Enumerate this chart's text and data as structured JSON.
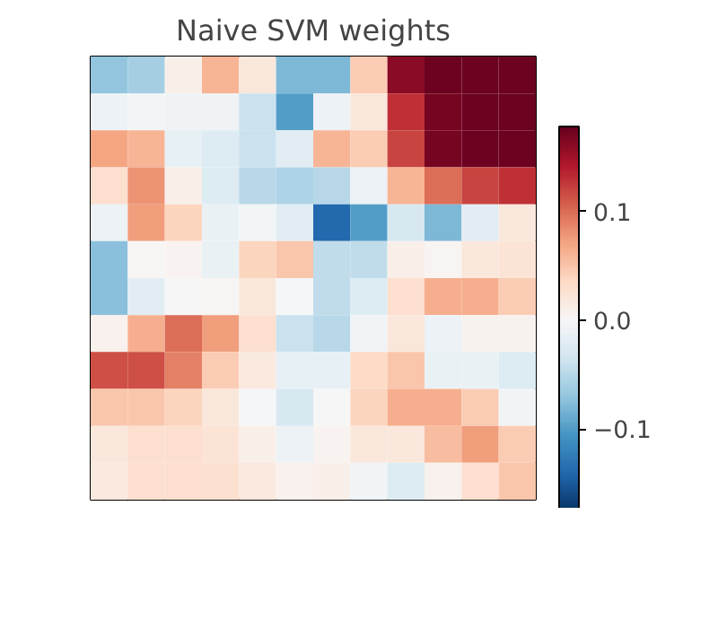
{
  "chart_data": {
    "type": "heatmap",
    "title": "Naive SVM weights",
    "tick_labels": false,
    "categories": [
      null,
      null,
      null,
      null,
      null,
      null,
      null,
      null,
      null,
      null,
      null,
      null
    ],
    "y_categories": [
      null,
      null,
      null,
      null,
      null,
      null,
      null,
      null,
      null,
      null,
      null,
      null
    ],
    "cells": [
      [
        -0.07,
        -0.06,
        0.01,
        0.06,
        0.02,
        -0.08,
        -0.08,
        0.045,
        0.16,
        0.175,
        0.175,
        0.175
      ],
      [
        -0.01,
        -0.005,
        -0.007,
        -0.007,
        -0.04,
        -0.1,
        -0.01,
        0.02,
        0.13,
        0.17,
        0.175,
        0.175
      ],
      [
        0.07,
        0.06,
        -0.015,
        -0.025,
        -0.04,
        -0.02,
        0.06,
        0.045,
        0.12,
        0.17,
        0.175,
        0.175
      ],
      [
        0.03,
        0.08,
        0.01,
        -0.025,
        -0.05,
        -0.055,
        -0.05,
        -0.01,
        0.06,
        0.1,
        0.12,
        0.13
      ],
      [
        -0.01,
        0.075,
        0.04,
        -0.012,
        -0.005,
        -0.02,
        -0.14,
        -0.1,
        -0.03,
        -0.08,
        -0.02,
        0.02
      ],
      [
        -0.075,
        0.002,
        0.005,
        -0.012,
        0.04,
        0.05,
        -0.045,
        -0.045,
        0.01,
        0.004,
        0.02,
        0.025
      ],
      [
        -0.075,
        -0.02,
        0,
        0.002,
        0.02,
        -0.002,
        -0.045,
        -0.025,
        0.03,
        0.065,
        0.065,
        0.045
      ],
      [
        0.008,
        0.065,
        0.1,
        0.075,
        0.03,
        -0.04,
        -0.05,
        -0.006,
        0.02,
        -0.01,
        0.006,
        0.006
      ],
      [
        0.115,
        0.115,
        0.09,
        0.045,
        0.018,
        -0.015,
        -0.015,
        0.035,
        0.05,
        -0.012,
        -0.012,
        -0.025
      ],
      [
        0.05,
        0.05,
        0.04,
        0.02,
        -0.002,
        -0.03,
        0,
        0.04,
        0.065,
        0.065,
        0.045,
        -0.006
      ],
      [
        0.02,
        0.03,
        0.03,
        0.025,
        0.01,
        -0.01,
        0.005,
        0.02,
        0.02,
        0.055,
        0.075,
        0.045
      ],
      [
        0.018,
        0.03,
        0.03,
        0.028,
        0.018,
        0.008,
        0.01,
        -0.006,
        -0.025,
        0.007,
        0.03,
        0.05
      ]
    ],
    "clim": [
      -0.178,
      0.178
    ],
    "cticks": [
      {
        "value": -0.1,
        "label": "−0.1"
      },
      {
        "value": 0,
        "label": "0.0"
      },
      {
        "value": 0.1,
        "label": "0.1"
      }
    ]
  }
}
